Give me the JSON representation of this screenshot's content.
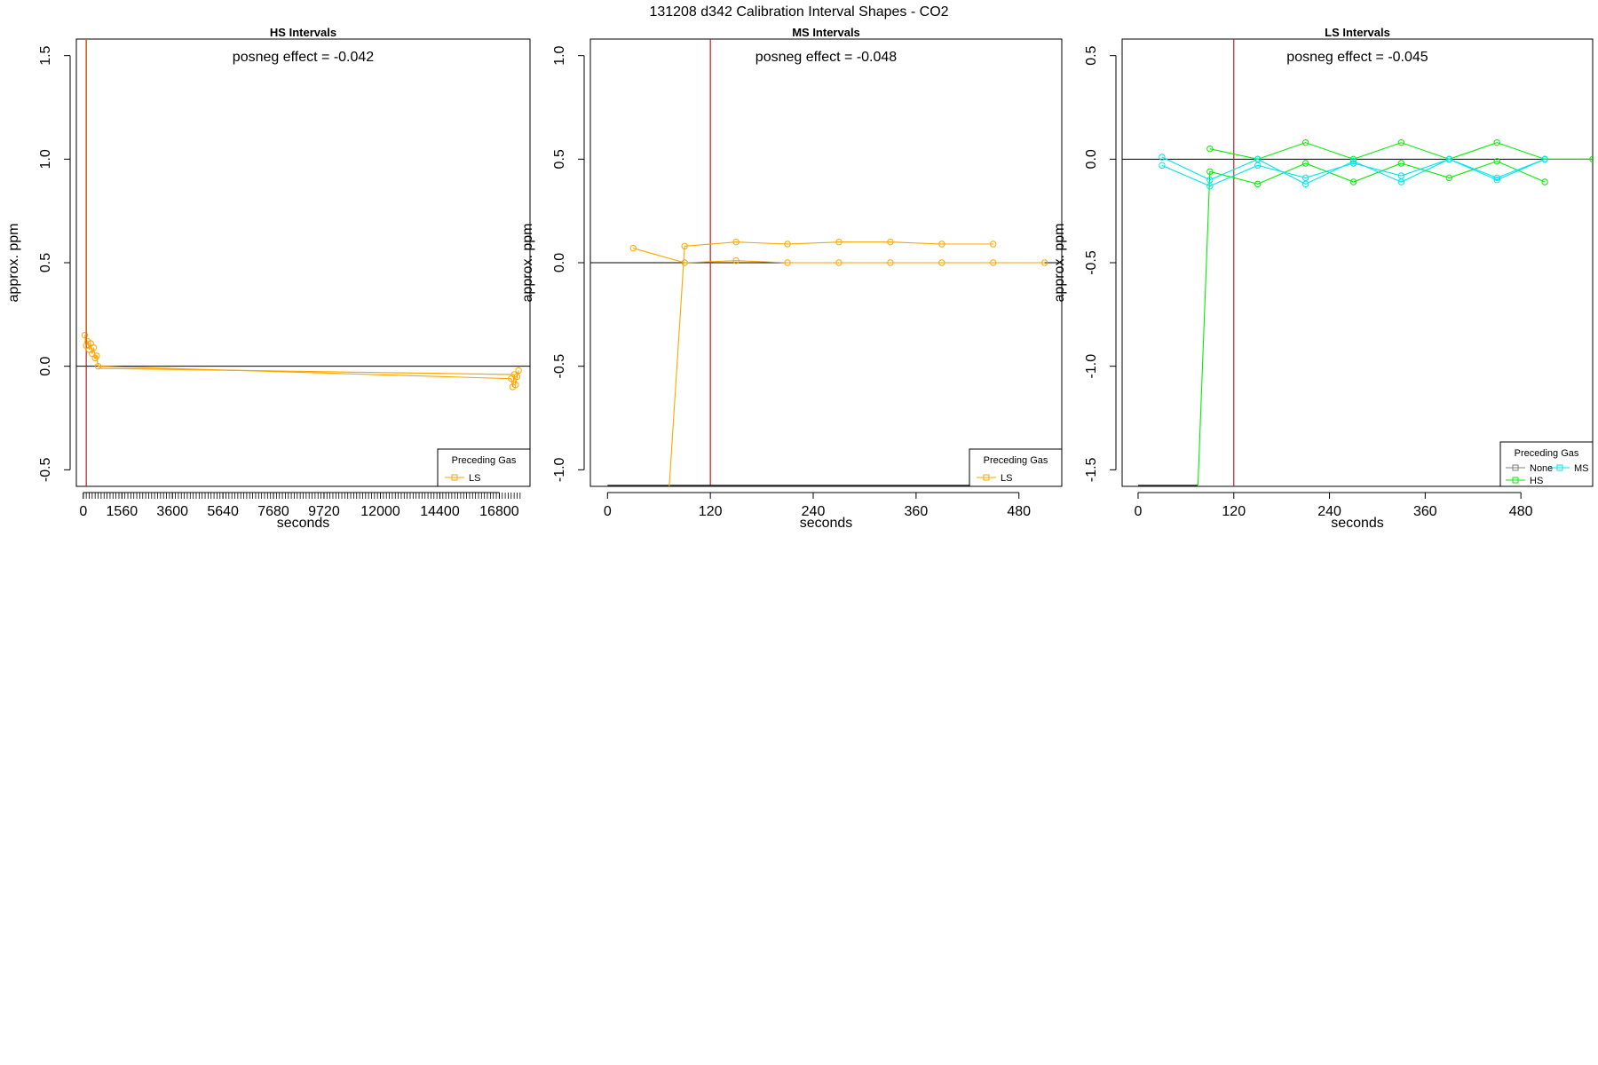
{
  "title": "131208  d342   Calibration Interval Shapes - CO2",
  "colors": {
    "LS": "#FFA500",
    "MS": "#00E5EE",
    "HS": "#00EE00",
    "None": "#7F7F7F",
    "vline": "#B22222",
    "axis": "#000000"
  },
  "chart_data": [
    {
      "type": "line",
      "title": "HS Intervals",
      "xlabel": "seconds",
      "ylabel": "approx. ppm",
      "annotation": "posneg effect = -0.042",
      "xlim": [
        -280,
        18040
      ],
      "ylim": [
        -0.58,
        1.58
      ],
      "xticks": [
        0,
        1560,
        3600,
        5640,
        7680,
        9720,
        12000,
        14400,
        16800
      ],
      "yticks": [
        -0.5,
        0.0,
        0.5,
        1.0,
        1.5
      ],
      "ytick_labels": [
        "-0.5",
        "0.0",
        "0.5",
        "1.0",
        "1.5"
      ],
      "minor_xticks": {
        "from": 0,
        "to": 17640,
        "step": 120
      },
      "vline": 120,
      "hline": 0,
      "legend": {
        "title": "Preceding Gas",
        "entries": [
          "LS"
        ],
        "position": "bottom-right"
      },
      "series": [
        {
          "gas": "LS",
          "x": [
            60,
            120,
            180,
            240,
            300,
            360,
            420,
            480,
            540,
            600,
            17280,
            17340,
            17400,
            17460,
            17520,
            17580
          ],
          "y": [
            0.15,
            0.1,
            0.12,
            0.08,
            0.11,
            0.06,
            0.09,
            0.04,
            0.05,
            0.0,
            -0.06,
            -0.1,
            -0.04,
            -0.09,
            -0.05,
            -0.02
          ],
          "spike": {
            "x": [
              120,
              120
            ],
            "y": [
              1.58,
              0.1
            ]
          }
        }
      ],
      "baseline": {
        "x": [
          600,
          17400
        ],
        "y": [
          -0.01,
          -0.04
        ]
      }
    },
    {
      "type": "line",
      "title": "MS Intervals",
      "xlabel": "seconds",
      "ylabel": "approx. ppm",
      "annotation": "posneg effect = -0.048",
      "xlim": [
        -20,
        530
      ],
      "ylim": [
        -1.08,
        1.08
      ],
      "xticks": [
        0,
        120,
        240,
        360,
        480
      ],
      "yticks": [
        -1.0,
        -0.5,
        0.0,
        0.5,
        1.0
      ],
      "ytick_labels": [
        "-1.0",
        "-0.5",
        "0.0",
        "0.5",
        "1.0"
      ],
      "vline": 120,
      "hline": 0,
      "legend": {
        "title": "Preceding Gas",
        "entries": [
          "LS"
        ],
        "position": "bottom-right"
      },
      "series": [
        {
          "gas": "LS",
          "x": [
            30,
            90,
            150,
            210,
            270,
            330,
            390,
            450,
            510
          ],
          "y": [
            0.07,
            0.0,
            0.01,
            0.0,
            0.0,
            0.0,
            0.0,
            0.0,
            0.0
          ]
        },
        {
          "gas": "LS",
          "x": [
            90,
            150,
            210,
            270,
            330,
            390,
            450
          ],
          "y": [
            0.08,
            0.1,
            0.09,
            0.1,
            0.1,
            0.09,
            0.09
          ]
        },
        {
          "gas": "LS",
          "x": [
            72,
            90
          ],
          "y": [
            -1.08,
            0.08
          ]
        }
      ],
      "bottom_line": {
        "x": [
          0,
          510
        ],
        "y": [
          -1.075,
          -1.075
        ]
      }
    },
    {
      "type": "line",
      "title": "LS Intervals",
      "xlabel": "seconds",
      "ylabel": "approx. ppm",
      "annotation": "posneg effect = -0.045",
      "xlim": [
        -20,
        570
      ],
      "ylim": [
        -1.58,
        0.58
      ],
      "xticks": [
        0,
        120,
        240,
        360,
        480
      ],
      "yticks": [
        -1.5,
        -1.0,
        -0.5,
        0.0,
        0.5
      ],
      "ytick_labels": [
        "-1.5",
        "-1.0",
        "-0.5",
        "0.0",
        "0.5"
      ],
      "vline": 120,
      "hline": 0,
      "legend": {
        "title": "Preceding Gas",
        "entries": [
          "None",
          "MS",
          "HS"
        ],
        "position": "bottom-right"
      },
      "series": [
        {
          "gas": "HS",
          "x": [
            90,
            150,
            210,
            270,
            330,
            390,
            450,
            510,
            570
          ],
          "y": [
            0.05,
            0.0,
            0.08,
            0.0,
            0.08,
            0.0,
            0.08,
            0.0,
            0.0
          ]
        },
        {
          "gas": "HS",
          "x": [
            90,
            150,
            210,
            270,
            330,
            390,
            450,
            510
          ],
          "y": [
            -0.06,
            -0.12,
            -0.02,
            -0.11,
            -0.02,
            -0.09,
            -0.01,
            -0.11
          ]
        },
        {
          "gas": "HS",
          "x": [
            75,
            90
          ],
          "y": [
            -1.58,
            -0.06
          ]
        },
        {
          "gas": "MS",
          "x": [
            30,
            90,
            150,
            210,
            270,
            330,
            390,
            450,
            510
          ],
          "y": [
            0.01,
            -0.1,
            0.0,
            -0.12,
            -0.01,
            -0.11,
            0.0,
            -0.1,
            0.0
          ]
        },
        {
          "gas": "MS",
          "x": [
            30,
            90,
            150,
            210,
            270,
            330,
            390,
            450,
            510
          ],
          "y": [
            -0.03,
            -0.13,
            -0.03,
            -0.09,
            -0.02,
            -0.08,
            0.0,
            -0.09,
            0.0
          ]
        }
      ],
      "bottom_line": {
        "x": [
          0,
          75
        ],
        "y": [
          -1.575,
          -1.575
        ]
      }
    }
  ]
}
